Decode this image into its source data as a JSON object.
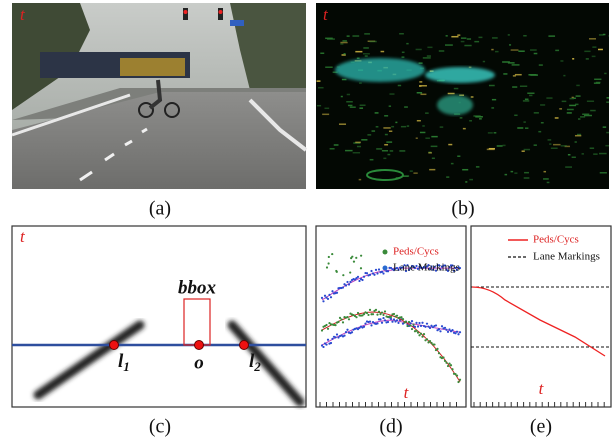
{
  "panels": [
    {
      "caption": "(a)",
      "tag": "t"
    },
    {
      "caption": "(b)",
      "tag": "t"
    },
    {
      "caption": "(c)",
      "tag": "t",
      "labels": {
        "bbox": "bbox",
        "l1": "l",
        "l1_sub": "1",
        "o": "o",
        "l2": "l",
        "l2_sub": "2"
      }
    },
    {
      "caption": "(d)",
      "axis_label": "t",
      "legend": [
        "Peds/Cycs",
        "Lane Markings"
      ]
    },
    {
      "caption": "(e)",
      "axis_label": "t",
      "legend": [
        "Peds/Cycs",
        "Lane Markings"
      ]
    }
  ]
}
